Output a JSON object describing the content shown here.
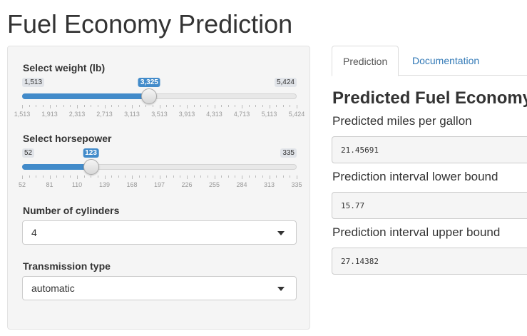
{
  "app": {
    "title": "Fuel Economy Prediction"
  },
  "sidebar": {
    "weight": {
      "label": "Select weight (lb)",
      "min": 1513,
      "max": 5424,
      "value": 3325,
      "min_text": "1,513",
      "max_text": "5,424",
      "value_text": "3,325",
      "ticks": [
        "1,513",
        "1,913",
        "2,313",
        "2,713",
        "3,113",
        "3,513",
        "3,913",
        "4,313",
        "4,713",
        "5,113",
        "5,424"
      ]
    },
    "horsepower": {
      "label": "Select horsepower",
      "min": 52,
      "max": 335,
      "value": 123,
      "min_text": "52",
      "max_text": "335",
      "value_text": "123",
      "ticks": [
        "52",
        "81",
        "110",
        "139",
        "168",
        "197",
        "226",
        "255",
        "284",
        "313",
        "335"
      ]
    },
    "cylinders": {
      "label": "Number of cylinders",
      "selected": "4"
    },
    "transmission": {
      "label": "Transmission type",
      "selected": "automatic"
    }
  },
  "main": {
    "tabs": [
      {
        "label": "Prediction",
        "active": true
      },
      {
        "label": "Documentation",
        "active": false
      }
    ],
    "heading": "Predicted Fuel Economy",
    "outputs": [
      {
        "label": "Predicted miles per gallon",
        "value": "21.45691"
      },
      {
        "label": "Prediction interval lower bound",
        "value": "15.77"
      },
      {
        "label": "Prediction interval upper bound",
        "value": "27.14382"
      }
    ]
  },
  "colors": {
    "accent": "#428bca",
    "link": "#337ab7",
    "well": "#f5f5f5"
  }
}
